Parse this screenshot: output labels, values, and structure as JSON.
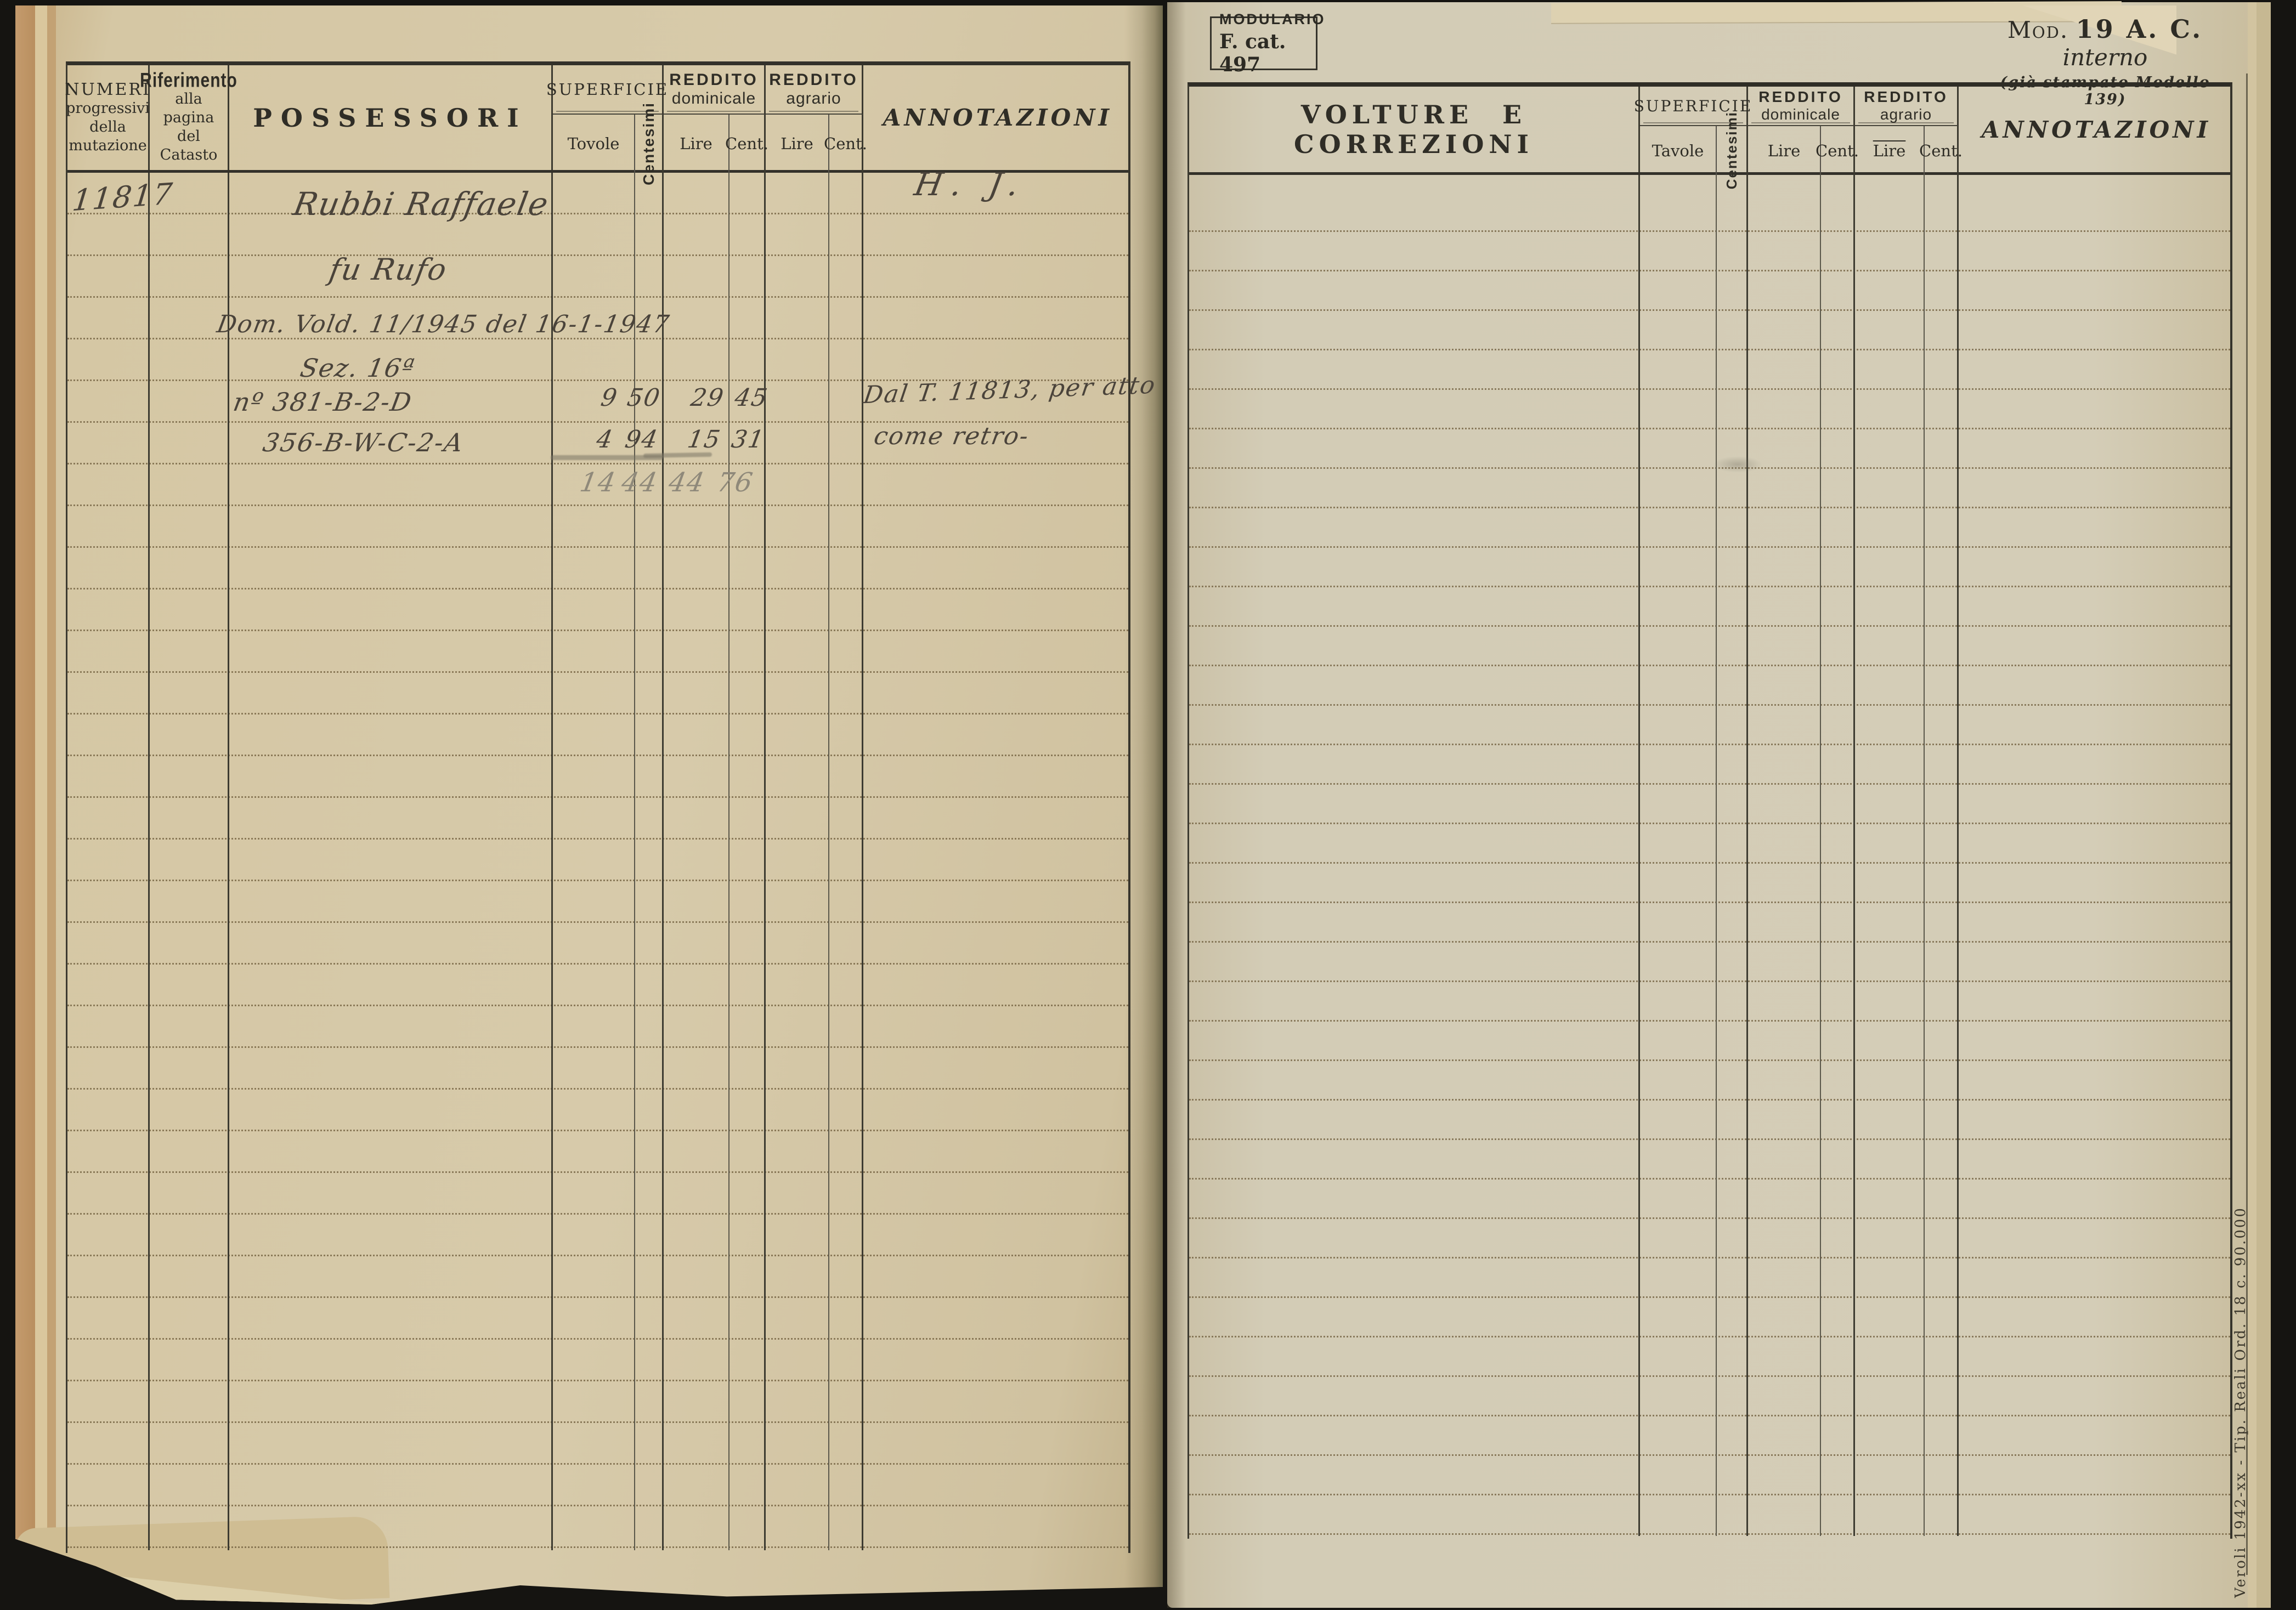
{
  "stamps": {
    "modulario_label": "MODULARIO",
    "modulario_ref": "F. cat. 497",
    "mod_prefix": "Mod.",
    "mod_number": "19 A. C.",
    "mod_suffix": "interno",
    "mod_note": "(già stampato Modello 139)",
    "imprint": "Veroli 1942-xx - Tip. Reali Ord. 18 c. 90.000"
  },
  "left_page": {
    "header": {
      "numeri_lines": [
        "NUMERI",
        "progressivi",
        "della",
        "mutazione"
      ],
      "riferimento_lines": [
        "Riferimento",
        "alla pagina",
        "del",
        "Catasto"
      ],
      "possessori": "POSSESSORI",
      "superficie": "SUPERFICIE",
      "tavole": "Tovole",
      "centesimi": "Centesimi",
      "reddito_dominicale": [
        "REDDITO",
        "dominicale"
      ],
      "reddito_agrario": [
        "REDDITO",
        "agrario"
      ],
      "lire": "Lire",
      "cent": "Cent.",
      "annotazioni": "ANNOTAZIONI"
    },
    "entry": {
      "numero": "11817",
      "sigla": "H. J.",
      "owner_line1": "Rubbi Raffaele",
      "owner_line2": "fu Rufo",
      "act_line": "Dom. Vold. 11/1945 del 16-1-1947",
      "section": "Sez. 16ª",
      "parcel1": "nº 381-B-2-D",
      "parcel2": "356-B-W-C-2-A",
      "amounts": {
        "row1": {
          "tavole": "9",
          "centesimi": "50",
          "lire": "29",
          "cent": "45"
        },
        "row2": {
          "tavole": "4",
          "centesimi": "94",
          "lire": "15",
          "cent": "31"
        },
        "total": {
          "tavole": "14",
          "centesimi": "44",
          "lire": "44",
          "cent": "76"
        }
      },
      "annotation_line1": "Dal T. 11813, per atto",
      "annotation_line2": "come retro-"
    }
  },
  "right_page": {
    "title": "VOLTURE E CORREZIONI",
    "header": {
      "superficie": "SUPERFICIE",
      "tavole": "Tavole",
      "centesimi": "Centesimi",
      "reddito_dominicale": [
        "REDDITO",
        "dominicale"
      ],
      "reddito_agrario": [
        "REDDITO",
        "agrario"
      ],
      "lire": "Lire",
      "cent": "Cent.",
      "annotazioni": "ANNOTAZIONI"
    }
  }
}
